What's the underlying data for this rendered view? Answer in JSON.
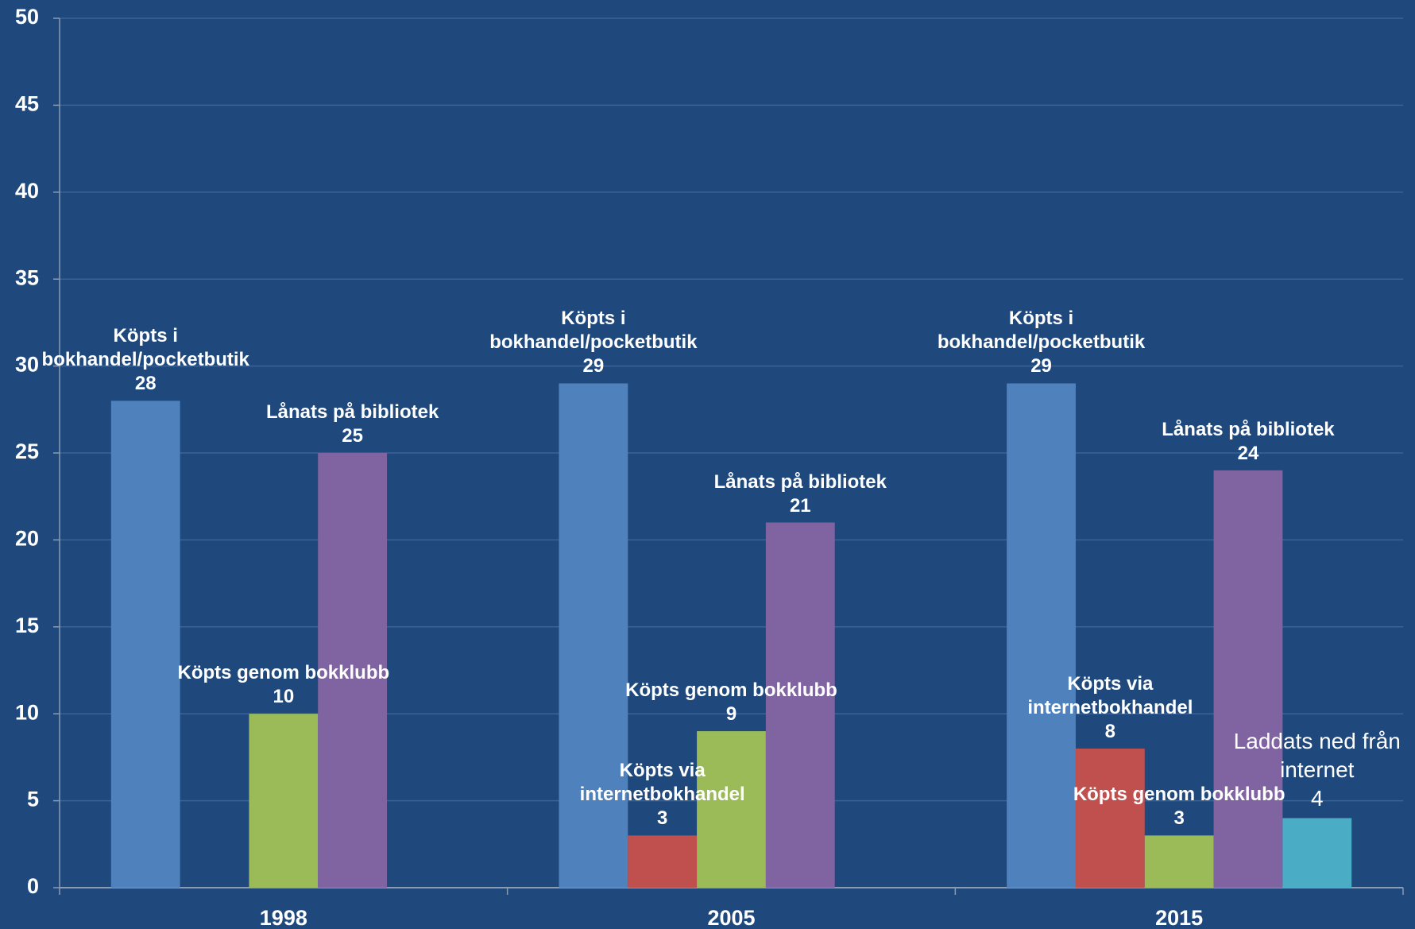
{
  "chart_data": {
    "type": "bar",
    "categories": [
      "1998",
      "2005",
      "2015"
    ],
    "series": [
      {
        "name": "Köpts i bokhandel/pocketbutik",
        "color": "#4f81bd",
        "values": [
          28,
          29,
          29
        ]
      },
      {
        "name": "Köpts via internetbokhandel",
        "color": "#c0504d",
        "values": [
          null,
          3,
          8
        ]
      },
      {
        "name": "Köpts genom bokklubb",
        "color": "#9bbb59",
        "values": [
          10,
          9,
          3
        ]
      },
      {
        "name": "Lånats på bibliotek",
        "color": "#8064a2",
        "values": [
          25,
          21,
          24
        ]
      },
      {
        "name": "Laddats ned från internet",
        "color": "#4bacc6",
        "values": [
          null,
          null,
          4
        ]
      }
    ],
    "ylim": [
      0,
      50
    ],
    "yticks": [
      0,
      5,
      10,
      15,
      20,
      25,
      30,
      35,
      40,
      45,
      50
    ],
    "grid": true
  }
}
